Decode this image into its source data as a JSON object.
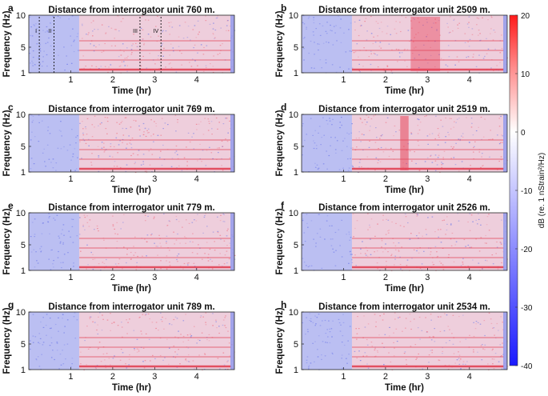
{
  "figure": {
    "colorbar": {
      "label": "dB (re. 1 nStrain²/Hz)",
      "ticks": [
        20,
        10,
        0,
        -10,
        -20,
        -30,
        -40
      ],
      "range": [
        -40,
        20
      ],
      "low_color": "#1a1aff",
      "mid_color": "#ffffff",
      "high_color": "#ff1a1a"
    }
  },
  "chart_data": [
    {
      "type": "heatmap",
      "panel": "a",
      "title": "Distance from interrogator unit 760 m.",
      "xlabel": "Time (hr)",
      "ylabel": "Frequency (Hz)",
      "xticks": [
        1,
        2,
        3,
        4
      ],
      "yticks": [
        1,
        5,
        10
      ],
      "xlim": [
        0,
        4.9
      ],
      "ylim": [
        1,
        10
      ],
      "annotations": [
        "I",
        "II",
        "III",
        "IV"
      ],
      "annotation_times": [
        0.25,
        0.6,
        2.65,
        3.15
      ]
    },
    {
      "type": "heatmap",
      "panel": "b",
      "title": "Distance from interrogator unit 2509 m.",
      "xlabel": "Time (hr)",
      "ylabel": "Frequency (Hz)",
      "xticks": [
        1,
        2,
        3,
        4
      ],
      "yticks": [
        1,
        5,
        10
      ],
      "xlim": [
        0,
        4.9
      ],
      "ylim": [
        1,
        10
      ]
    },
    {
      "type": "heatmap",
      "panel": "c",
      "title": "Distance from interrogator unit 769 m.",
      "xlabel": "Time (hr)",
      "ylabel": "Frequency (Hz)",
      "xticks": [
        1,
        2,
        3,
        4
      ],
      "yticks": [
        1,
        5,
        10
      ],
      "xlim": [
        0,
        4.9
      ],
      "ylim": [
        1,
        10
      ]
    },
    {
      "type": "heatmap",
      "panel": "d",
      "title": "Distance from interrogator unit 2519 m.",
      "xlabel": "Time (hr)",
      "ylabel": "Frequency (Hz)",
      "xticks": [
        1,
        2,
        3,
        4
      ],
      "yticks": [
        1,
        5,
        10
      ],
      "xlim": [
        0,
        4.9
      ],
      "ylim": [
        1,
        10
      ]
    },
    {
      "type": "heatmap",
      "panel": "e",
      "title": "Distance from interrogator unit 779 m.",
      "xlabel": "Time (hr)",
      "ylabel": "Frequency (Hz)",
      "xticks": [
        1,
        2,
        3,
        4
      ],
      "yticks": [
        1,
        5,
        10
      ],
      "xlim": [
        0,
        4.9
      ],
      "ylim": [
        1,
        10
      ]
    },
    {
      "type": "heatmap",
      "panel": "f",
      "title": "Distance from interrogator unit 2526 m.",
      "xlabel": "Time (hr)",
      "ylabel": "Frequency (Hz)",
      "xticks": [
        1,
        2,
        3,
        4
      ],
      "yticks": [
        1,
        5,
        10
      ],
      "xlim": [
        0,
        4.9
      ],
      "ylim": [
        1,
        10
      ]
    },
    {
      "type": "heatmap",
      "panel": "g",
      "title": "Distance from interrogator unit 789 m.",
      "xlabel": "Time (hr)",
      "ylabel": "Frequency (Hz)",
      "xticks": [
        1,
        2,
        3,
        4
      ],
      "yticks": [
        1,
        5,
        10
      ],
      "xlim": [
        0,
        4.9
      ],
      "ylim": [
        1,
        10
      ]
    },
    {
      "type": "heatmap",
      "panel": "h",
      "title": "Distance from interrogator unit 2534 m.",
      "xlabel": "Time (hr)",
      "ylabel": "Frequency (Hz)",
      "xticks": [
        1,
        2,
        3,
        4
      ],
      "yticks": [
        1,
        5,
        10
      ],
      "xlim": [
        0,
        4.9
      ],
      "ylim": [
        1,
        10
      ]
    }
  ]
}
